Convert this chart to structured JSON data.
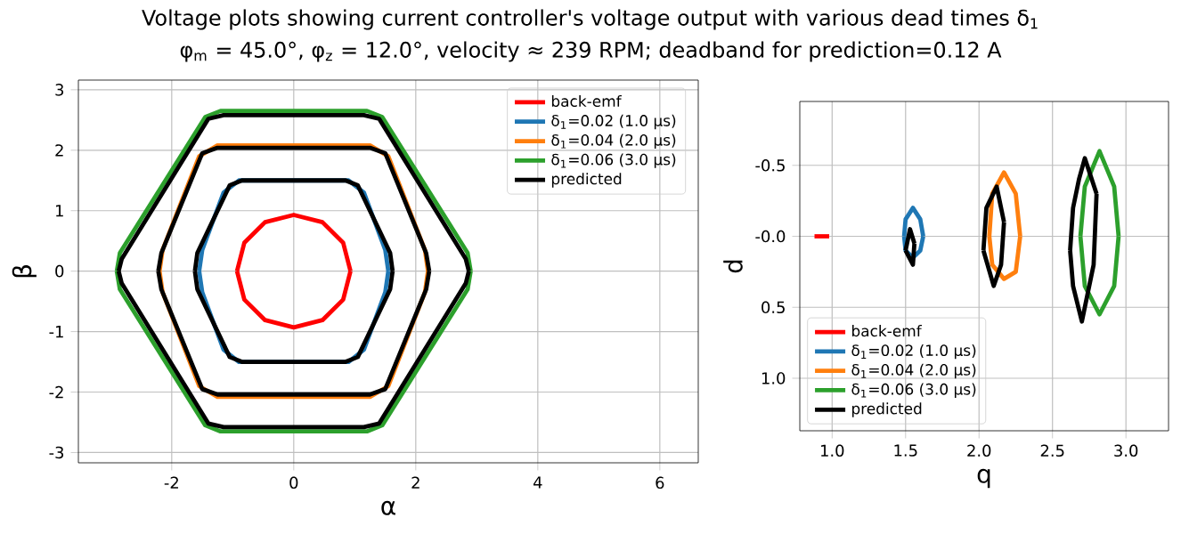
{
  "chart_data": [
    {
      "type": "line",
      "title": "Voltage plots showing current controller's voltage output with various dead times δ$_{1}$",
      "subtitle": "φ$_{m}$ = 45.0°, φ$_{z}$ = 12.0°, velocity ≈ 239 RPM; deadband for prediction=0.12 A",
      "xlabel": "α",
      "ylabel": "β",
      "xlim": [
        -3.53,
        6.63
      ],
      "ylim": [
        -3.17,
        3.16
      ],
      "xticks": [
        -2,
        0,
        2,
        4,
        6
      ],
      "yticks": [
        -3,
        -2,
        -1,
        0,
        1,
        2,
        3
      ],
      "grid": true,
      "legend": "top right",
      "series": [
        {
          "name": "back-emf",
          "color": "#ff0000",
          "x": [
            -0.93,
            -0.81,
            -0.47,
            0,
            0.47,
            0.81,
            0.93,
            null,
            -0.93,
            -0.81,
            -0.47,
            0,
            0.47,
            0.81,
            0.93
          ],
          "values": [
            0,
            0.47,
            0.81,
            0.93,
            0.81,
            0.47,
            0,
            null,
            0,
            -0.47,
            -0.81,
            -0.93,
            -0.81,
            -0.47,
            0
          ]
        },
        {
          "name": "δ$_{1}$=0.02 (1.0 µs)",
          "color": "#1f77b4",
          "x": [
            -1.55,
            -1.5,
            -1.15,
            -0.9,
            0.9,
            1.15,
            1.5,
            1.55,
            null,
            -1.55,
            -1.5,
            -1.15,
            -0.9,
            0.9,
            1.15,
            1.5,
            1.55
          ],
          "values": [
            0,
            0.35,
            1.3,
            1.5,
            1.5,
            1.3,
            0.35,
            0,
            null,
            0,
            -0.35,
            -1.3,
            -1.5,
            -1.5,
            -1.3,
            -0.35,
            0
          ]
        },
        {
          "name": "δ$_{1}$=0.04 (2.0 µs)",
          "color": "#ff7f0e",
          "x": [
            -2.2,
            -2.15,
            -1.55,
            -1.25,
            1.25,
            1.55,
            2.15,
            2.2,
            null,
            -2.2,
            -2.15,
            -1.55,
            -1.25,
            1.25,
            1.55,
            2.15,
            2.2
          ],
          "values": [
            0,
            0.35,
            1.9,
            2.08,
            2.08,
            1.9,
            0.35,
            0,
            null,
            0,
            -0.35,
            -1.9,
            -2.08,
            -2.08,
            -1.9,
            -0.35,
            0
          ]
        },
        {
          "name": "δ$_{1}$=0.06 (3.0 µs)",
          "color": "#2ca02c",
          "x": [
            -2.9,
            -2.85,
            -1.45,
            -1.2,
            1.2,
            1.45,
            2.85,
            2.9,
            null,
            -2.9,
            -2.85,
            -1.45,
            -1.2,
            1.2,
            1.45,
            2.85,
            2.9
          ],
          "values": [
            0,
            0.3,
            2.55,
            2.65,
            2.65,
            2.55,
            0.3,
            0,
            null,
            0,
            -0.3,
            -2.55,
            -2.65,
            -2.65,
            -2.55,
            -0.3,
            0
          ]
        },
        {
          "name": "predicted",
          "color": "#000000",
          "x": [
            -1.62,
            -1.58,
            -1.05,
            -0.85,
            0.85,
            1.05,
            1.58,
            1.62,
            null,
            -1.62,
            -1.58,
            -1.05,
            -0.85,
            0.85,
            1.05,
            1.58,
            1.62,
            null,
            -2.22,
            -2.17,
            -1.5,
            -1.25,
            1.25,
            1.5,
            2.17,
            2.22,
            null,
            -2.22,
            -2.17,
            -1.5,
            -1.25,
            1.25,
            1.5,
            2.17,
            2.22,
            null,
            -2.87,
            -2.82,
            -1.4,
            -1.15,
            1.15,
            1.4,
            2.82,
            2.87,
            null,
            -2.87,
            -2.82,
            -1.4,
            -1.15,
            1.15,
            1.4,
            2.82,
            2.87
          ],
          "values": [
            0,
            0.3,
            1.42,
            1.5,
            1.5,
            1.42,
            0.3,
            0,
            null,
            0,
            -0.3,
            -1.42,
            -1.5,
            -1.5,
            -1.42,
            -0.3,
            0,
            null,
            0,
            0.3,
            1.95,
            2.04,
            2.04,
            1.95,
            0.3,
            0,
            null,
            0,
            -0.3,
            -1.95,
            -2.04,
            -2.04,
            -1.95,
            -0.3,
            0,
            null,
            0,
            0.2,
            2.52,
            2.58,
            2.58,
            2.52,
            0.2,
            0,
            null,
            0,
            -0.2,
            -2.52,
            -2.58,
            -2.58,
            -2.52,
            -0.2,
            0
          ]
        }
      ]
    },
    {
      "type": "line",
      "xlabel": "q",
      "ylabel": "d",
      "xlim": [
        0.78,
        3.29
      ],
      "ylim": [
        1.37,
        -0.95
      ],
      "xticks": [
        {
          "value": 1.0,
          "label": "1.0"
        },
        1.5,
        {
          "value": 2.0,
          "label": "2.0"
        },
        2.5,
        {
          "value": 3.0,
          "label": "3.0"
        }
      ],
      "yticks": [
        {
          "value": -0.5,
          "label": "-0.5"
        },
        {
          "value": 0,
          "label": "-0.0"
        },
        {
          "value": 0.5,
          "label": "0.5"
        },
        {
          "value": 1.0,
          "label": "1.0"
        }
      ],
      "grid": true,
      "legend": "bottom left",
      "series": [
        {
          "name": "back-emf",
          "color": "#ff0000",
          "x": [
            0.88,
            0.98
          ],
          "values": [
            0,
            0
          ]
        },
        {
          "name": "δ$_{1}$=0.02 (1.0 µs)",
          "color": "#1f77b4",
          "x": [
            1.49,
            1.5,
            1.55,
            1.6,
            1.62,
            null,
            1.49,
            1.5,
            1.55,
            1.6,
            1.62
          ],
          "values": [
            0,
            -0.12,
            -0.2,
            -0.12,
            0,
            null,
            0,
            0.1,
            0.15,
            0.1,
            0
          ]
        },
        {
          "name": "δ$_{1}$=0.04 (2.0 µs)",
          "color": "#ff7f0e",
          "x": [
            2.07,
            2.09,
            2.17,
            2.25,
            2.28,
            null,
            2.07,
            2.09,
            2.17,
            2.25,
            2.28
          ],
          "values": [
            0,
            -0.3,
            -0.45,
            -0.3,
            0,
            null,
            0,
            0.2,
            0.3,
            0.25,
            0
          ]
        },
        {
          "name": "δ$_{1}$=0.06 (3.0 µs)",
          "color": "#2ca02c",
          "x": [
            2.69,
            2.72,
            2.82,
            2.92,
            2.95,
            null,
            2.69,
            2.72,
            2.82,
            2.92,
            2.95
          ],
          "values": [
            0,
            -0.35,
            -0.6,
            -0.35,
            0,
            null,
            0,
            0.35,
            0.55,
            0.35,
            0
          ]
        },
        {
          "name": "predicted",
          "color": "#000000",
          "x": [
            1.5,
            1.53,
            1.56,
            null,
            1.5,
            1.55,
            1.56,
            null,
            2.03,
            2.05,
            2.12,
            2.17,
            null,
            2.03,
            2.1,
            2.15,
            2.17,
            null,
            2.62,
            2.64,
            2.68,
            2.72,
            2.8,
            null,
            2.62,
            2.64,
            2.7,
            2.78,
            2.8
          ],
          "values": [
            0.1,
            -0.05,
            0.05,
            null,
            0.1,
            0.2,
            0.05,
            null,
            0.1,
            -0.2,
            -0.35,
            -0.1,
            null,
            0.1,
            0.35,
            0.2,
            -0.1,
            null,
            0.1,
            -0.2,
            -0.4,
            -0.55,
            -0.3,
            null,
            0.1,
            0.35,
            0.6,
            0.2,
            -0.3
          ]
        }
      ]
    }
  ]
}
